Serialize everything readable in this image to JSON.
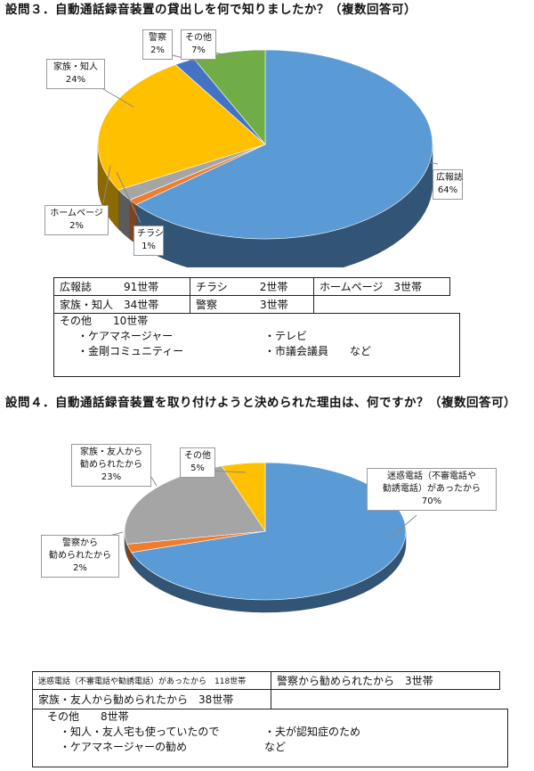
{
  "q3": {
    "title": "設問３．自動通話録音装置の貸出しを何で知りましたか？（複数回答可）",
    "callouts": {
      "kohoshi": {
        "name": "広報誌",
        "pct": "64%"
      },
      "kazoku": {
        "name": "家族・知人",
        "pct": "24%"
      },
      "keisatsu": {
        "name": "警察",
        "pct": "2%"
      },
      "sonota": {
        "name": "その他",
        "pct": "7%"
      },
      "homepage": {
        "name": "ホームページ",
        "pct": "2%"
      },
      "chirashi": {
        "name": "チラシ",
        "pct": "1%"
      }
    },
    "table": {
      "r1c1": "広報誌　　　91世帯",
      "r1c2": "チラシ　　　2世帯",
      "r1c3": "ホームページ　3世帯",
      "r2c1": "家族・知人　34世帯",
      "r2c2": "警察　　　　3世帯"
    },
    "notes": {
      "head": "その他　　10世帯",
      "a1": "・ケアマネージャー",
      "a2": "・テレビ",
      "b1": "・金剛コミュニティー",
      "b2": "・市議会議員　　など"
    }
  },
  "q4": {
    "title": "設問４．自動通話録音装置を取り付けようと決められた理由は、何ですか？（複数回答可）",
    "callouts": {
      "meiwaku": {
        "l1": "迷惑電話（不審電話や",
        "l2": "勧誘電話）があったから",
        "pct": "70%"
      },
      "kazoku": {
        "l1": "家族・友人から",
        "l2": "勧められたから",
        "pct": "23%"
      },
      "sonota": {
        "name": "その他",
        "pct": "5%"
      },
      "keisatsu": {
        "l1": "警察から",
        "l2": "勧められたから",
        "pct": "2%"
      }
    },
    "table": {
      "r1c1": "迷惑電話（不審電話や勧誘電話）があったから　118世帯",
      "r1c2": "警察から勧められたから　3世帯",
      "r2c1": "家族・友人から勧められたから　38世帯"
    },
    "notes": {
      "head": "その他　　8世帯",
      "a1": "・知人・友人宅も使っていたので",
      "a2": "・夫が認知症のため",
      "b1": "・ケアマネージャーの勧め",
      "b2": "など"
    }
  },
  "chart_data": [
    {
      "type": "pie",
      "title": "設問３．自動通話録音装置の貸出しを何で知りましたか？（複数回答可）",
      "categories": [
        "広報誌",
        "チラシ",
        "ホームページ",
        "家族・知人",
        "警察",
        "その他"
      ],
      "values": [
        64,
        1,
        2,
        24,
        2,
        7
      ],
      "counts": [
        91,
        2,
        3,
        34,
        3,
        10
      ],
      "colors": [
        "#5b9bd5",
        "#ed7d31",
        "#a5a5a5",
        "#ffc000",
        "#4472c4",
        "#70ad47"
      ]
    },
    {
      "type": "pie",
      "title": "設問４．自動通話録音装置を取り付けようと決められた理由は、何ですか？（複数回答可）",
      "categories": [
        "迷惑電話（不審電話や勧誘電話）があったから",
        "警察から勧められたから",
        "家族・友人から勧められたから",
        "その他"
      ],
      "values": [
        70,
        2,
        23,
        5
      ],
      "counts": [
        118,
        3,
        38,
        8
      ],
      "colors": [
        "#5b9bd5",
        "#ed7d31",
        "#a5a5a5",
        "#ffc000"
      ]
    }
  ]
}
